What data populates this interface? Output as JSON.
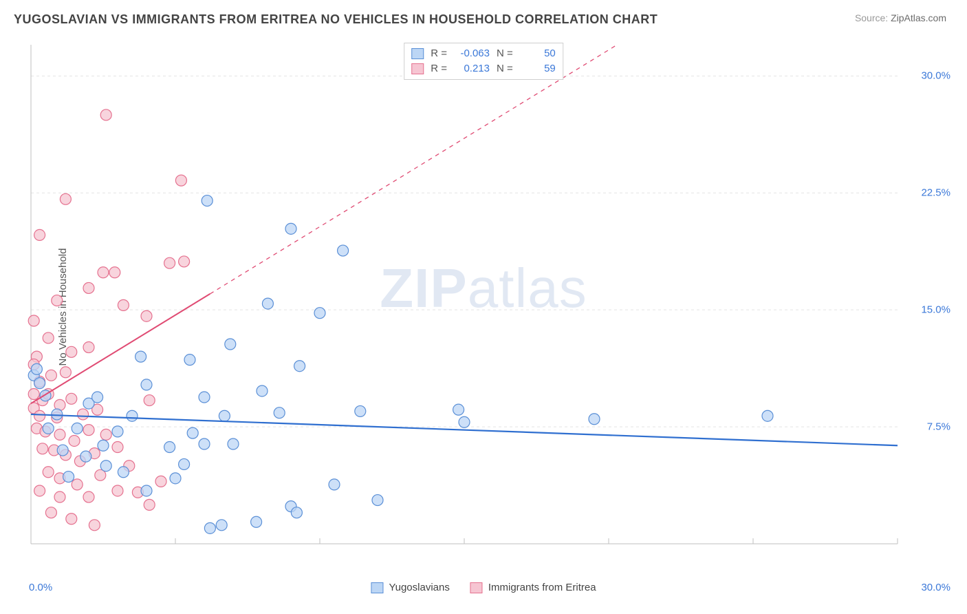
{
  "title": "YUGOSLAVIAN VS IMMIGRANTS FROM ERITREA NO VEHICLES IN HOUSEHOLD CORRELATION CHART",
  "source_prefix": "Source: ",
  "source_name": "ZipAtlas.com",
  "ylabel": "No Vehicles in Household",
  "watermark_bold": "ZIP",
  "watermark_rest": "atlas",
  "chart": {
    "type": "scatter",
    "background_color": "#ffffff",
    "grid_color": "#e3e3e3",
    "axis_color": "#bfbfbf",
    "tick_label_color": "#3b78d8",
    "xlim": [
      0,
      30
    ],
    "ylim": [
      0,
      32
    ],
    "y_ticks": [
      {
        "v": 7.5,
        "label": "7.5%"
      },
      {
        "v": 15.0,
        "label": "15.0%"
      },
      {
        "v": 22.5,
        "label": "22.5%"
      },
      {
        "v": 30.0,
        "label": "30.0%"
      }
    ],
    "x_ticks_minor": [
      5,
      10,
      15,
      20,
      25,
      30
    ],
    "x_min_label": "0.0%",
    "x_max_label": "30.0%",
    "series": [
      {
        "id": "yugoslavians",
        "label": "Yugoslavians",
        "marker_fill": "#bcd6f5",
        "marker_stroke": "#5a8fd6",
        "marker_r": 8,
        "line_color": "#2f6fd0",
        "line_width": 2.2,
        "line_dash": "",
        "R_label": "R =",
        "R": "-0.063",
        "N_label": "N =",
        "N": "50",
        "trend": {
          "x1": 0,
          "y1": 8.3,
          "x2": 30,
          "y2": 6.3
        },
        "points": [
          [
            0.1,
            10.8
          ],
          [
            0.2,
            11.2
          ],
          [
            6.1,
            22.0
          ],
          [
            9.0,
            20.2
          ],
          [
            10.8,
            18.8
          ],
          [
            2.0,
            9.0
          ],
          [
            4.0,
            10.2
          ],
          [
            3.5,
            8.2
          ],
          [
            3.8,
            12.0
          ],
          [
            5.5,
            11.8
          ],
          [
            6.0,
            9.4
          ],
          [
            6.7,
            8.2
          ],
          [
            6.9,
            12.8
          ],
          [
            8.2,
            15.4
          ],
          [
            8.0,
            9.8
          ],
          [
            8.6,
            8.4
          ],
          [
            9.3,
            11.4
          ],
          [
            9.0,
            2.4
          ],
          [
            9.2,
            2.0
          ],
          [
            10.0,
            14.8
          ],
          [
            10.5,
            3.8
          ],
          [
            11.4,
            8.5
          ],
          [
            14.8,
            8.6
          ],
          [
            15.0,
            7.8
          ],
          [
            19.5,
            8.0
          ],
          [
            25.5,
            8.2
          ],
          [
            12.0,
            2.8
          ],
          [
            6.2,
            1.0
          ],
          [
            6.6,
            1.2
          ],
          [
            7.8,
            1.4
          ],
          [
            2.5,
            6.3
          ],
          [
            2.6,
            5.0
          ],
          [
            3.0,
            7.2
          ],
          [
            1.6,
            7.4
          ],
          [
            1.1,
            6.0
          ],
          [
            0.9,
            8.3
          ],
          [
            0.5,
            9.5
          ],
          [
            0.6,
            7.4
          ],
          [
            1.3,
            4.3
          ],
          [
            1.9,
            5.6
          ],
          [
            4.8,
            6.2
          ],
          [
            5.0,
            4.2
          ],
          [
            5.3,
            5.1
          ],
          [
            6.0,
            6.4
          ],
          [
            7.0,
            6.4
          ],
          [
            4.0,
            3.4
          ],
          [
            2.3,
            9.4
          ],
          [
            5.6,
            7.1
          ],
          [
            3.2,
            4.6
          ],
          [
            0.3,
            10.3
          ]
        ]
      },
      {
        "id": "eritrea",
        "label": "Immigrants from Eritrea",
        "marker_fill": "#f6c5d2",
        "marker_stroke": "#e5718f",
        "marker_r": 8,
        "line_color": "#e04b73",
        "line_width": 2.0,
        "line_dash": "6 6",
        "R_label": "R =",
        "R": "0.213",
        "N_label": "N =",
        "N": "59",
        "trend": {
          "x1": 0,
          "y1": 9.0,
          "x2": 30,
          "y2": 43.0
        },
        "points": [
          [
            2.6,
            27.5
          ],
          [
            5.2,
            23.3
          ],
          [
            1.2,
            22.1
          ],
          [
            0.3,
            19.8
          ],
          [
            2.5,
            17.4
          ],
          [
            2.9,
            17.4
          ],
          [
            4.8,
            18.0
          ],
          [
            5.3,
            18.1
          ],
          [
            0.9,
            15.6
          ],
          [
            2.0,
            16.4
          ],
          [
            3.2,
            15.3
          ],
          [
            4.0,
            14.6
          ],
          [
            0.1,
            14.3
          ],
          [
            0.6,
            13.2
          ],
          [
            1.4,
            12.3
          ],
          [
            2.0,
            12.6
          ],
          [
            0.2,
            12.0
          ],
          [
            0.7,
            10.8
          ],
          [
            0.3,
            10.4
          ],
          [
            1.2,
            11.0
          ],
          [
            0.1,
            9.6
          ],
          [
            0.4,
            9.2
          ],
          [
            0.6,
            9.6
          ],
          [
            1.0,
            8.9
          ],
          [
            1.4,
            9.3
          ],
          [
            0.1,
            8.7
          ],
          [
            0.3,
            8.2
          ],
          [
            0.9,
            8.1
          ],
          [
            1.8,
            8.3
          ],
          [
            2.3,
            8.6
          ],
          [
            0.2,
            7.4
          ],
          [
            0.5,
            7.2
          ],
          [
            1.0,
            7.0
          ],
          [
            1.5,
            6.6
          ],
          [
            2.0,
            7.3
          ],
          [
            2.6,
            7.0
          ],
          [
            0.4,
            6.1
          ],
          [
            0.8,
            6.0
          ],
          [
            1.2,
            5.7
          ],
          [
            1.7,
            5.3
          ],
          [
            2.2,
            5.8
          ],
          [
            3.0,
            6.2
          ],
          [
            3.4,
            5.0
          ],
          [
            0.6,
            4.6
          ],
          [
            1.0,
            4.2
          ],
          [
            1.6,
            3.8
          ],
          [
            2.4,
            4.4
          ],
          [
            0.3,
            3.4
          ],
          [
            1.0,
            3.0
          ],
          [
            2.0,
            3.0
          ],
          [
            3.0,
            3.4
          ],
          [
            3.7,
            3.3
          ],
          [
            0.7,
            2.0
          ],
          [
            2.2,
            1.2
          ],
          [
            1.4,
            1.6
          ],
          [
            4.1,
            2.5
          ],
          [
            4.5,
            4.0
          ],
          [
            4.1,
            9.2
          ],
          [
            0.1,
            11.5
          ]
        ]
      }
    ]
  },
  "legend": {
    "sw_blue_fill": "#bcd6f5",
    "sw_blue_stroke": "#5a8fd6",
    "sw_pink_fill": "#f6c5d2",
    "sw_pink_stroke": "#e5718f"
  }
}
